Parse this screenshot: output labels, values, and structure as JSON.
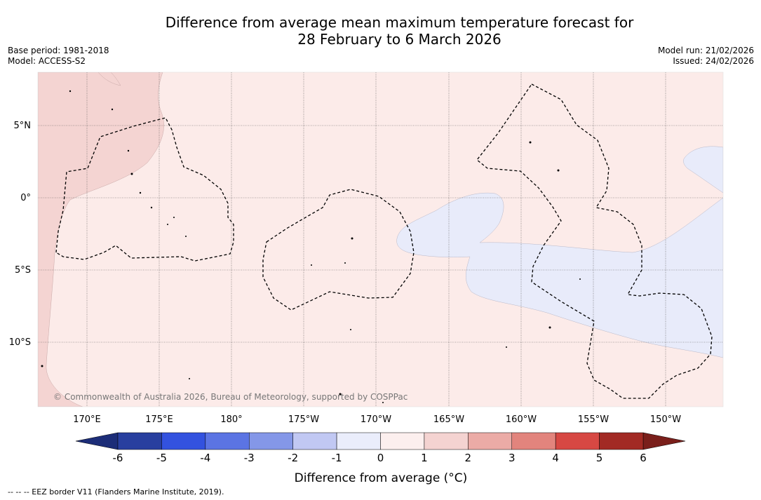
{
  "title": {
    "line1": "Difference from average mean maximum temperature forecast for",
    "line2": "28 February to 6 March 2026"
  },
  "meta_left": {
    "base_period": "Base period: 1981-2018",
    "model": "Model: ACCESS-S2"
  },
  "meta_right": {
    "model_run": "Model run: 21/02/2026",
    "issued": "Issued: 24/02/2026"
  },
  "map": {
    "lon_labels": [
      "170°E",
      "175°E",
      "180°",
      "175°W",
      "170°W",
      "165°W",
      "160°W",
      "155°W",
      "150°W"
    ],
    "lat_labels": [
      "5°N",
      "0°",
      "5°S",
      "10°S"
    ],
    "copyright": "© Commonwealth of Australia 2026, Bureau of Meteorology, supported by COSPPac"
  },
  "colorbar": {
    "ticks": [
      "-6",
      "-5",
      "-4",
      "-3",
      "-2",
      "-1",
      "0",
      "1",
      "2",
      "3",
      "4",
      "5",
      "6"
    ],
    "colors": [
      "#283f9f",
      "#3352df",
      "#5b74e3",
      "#8497e8",
      "#c1c8f3",
      "#eaedfb",
      "#fcefee",
      "#f4d3d1",
      "#ebaba6",
      "#e2847d",
      "#d74843",
      "#a22a24"
    ],
    "under_color": "#1c2d78",
    "over_color": "#7a1f1b",
    "label": "Difference from average (°C)"
  },
  "legend_note": "-- -- -- EEZ border V11 (Flanders Marine Institute, 2019)."
}
